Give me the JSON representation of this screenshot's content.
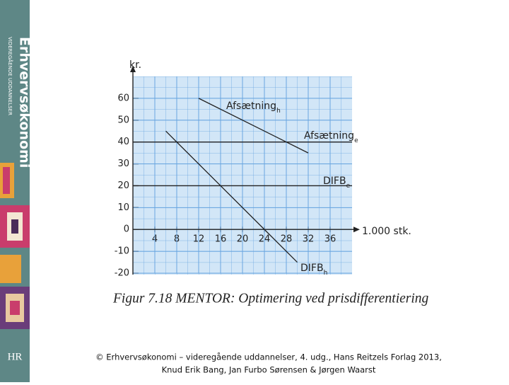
{
  "sidebar": {
    "brand": "Erhvervsøkonomi",
    "tagline": "VIDEREGÅENDE UDDANNELSER",
    "logo": "HR"
  },
  "chart_data": {
    "type": "line",
    "y_label": "kr.",
    "x_label": "1.000 stk.",
    "caption": "Figur 7.18 MENTOR: Optimering ved prisdifferentiering",
    "xlim": [
      0,
      40
    ],
    "xticks": [
      4,
      8,
      12,
      16,
      20,
      24,
      28,
      32,
      36
    ],
    "ylim": [
      -20,
      70
    ],
    "yticks": [
      60,
      50,
      40,
      30,
      20,
      10,
      0,
      -10,
      -20
    ],
    "grid": true,
    "series": [
      {
        "name": "Afsætning",
        "subscript": "h",
        "color": "#222222",
        "x": [
          12,
          32
        ],
        "values": [
          60,
          35
        ]
      },
      {
        "name": "Afsætning",
        "subscript": "e",
        "color": "#222222",
        "x": [
          0,
          40
        ],
        "values": [
          40,
          40
        ]
      },
      {
        "name": "DIFB",
        "subscript": "e",
        "color": "#222222",
        "x": [
          0,
          40
        ],
        "values": [
          20,
          20
        ]
      },
      {
        "name": "DIFB",
        "subscript": "h",
        "color": "#222222",
        "x": [
          6,
          30
        ],
        "values": [
          45,
          -15
        ]
      }
    ]
  },
  "footer": {
    "lines": [
      "© Erhvervsøkonomi – videregående uddannelser, 4. udg., Hans Reitzels Forlag 2013,",
      "Knud Erik Bang, Jan Furbo Sørensen & Jørgen Waarst"
    ]
  }
}
